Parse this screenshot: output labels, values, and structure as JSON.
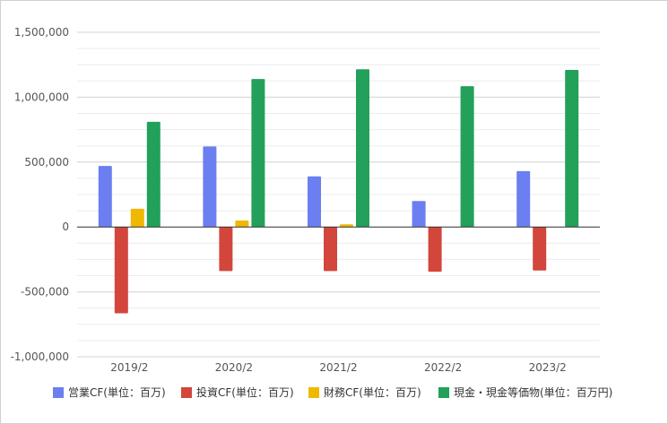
{
  "chart_data": {
    "type": "bar",
    "title": "",
    "xlabel": "",
    "ylabel": "",
    "categories": [
      "2019/2",
      "2020/2",
      "2021/2",
      "2022/2",
      "2023/2"
    ],
    "ylim": [
      -1000000,
      1500000
    ],
    "y_ticks": [
      1500000,
      1000000,
      500000,
      0,
      -500000,
      -1000000
    ],
    "y_tick_labels": [
      "1,500,000",
      "1,000,000",
      "500,000",
      "0",
      "-500,000",
      "-1,000,000"
    ],
    "grid": true,
    "legend_position": "bottom",
    "series": [
      {
        "name": "営業CF(単位：百万)",
        "color": "#6b7ff0",
        "values": [
          470000,
          620000,
          390000,
          200000,
          430000
        ]
      },
      {
        "name": "投資CF(単位：百万)",
        "color": "#d2463c",
        "values": [
          -665000,
          -340000,
          -340000,
          -345000,
          -335000
        ]
      },
      {
        "name": "財務CF(単位：百万)",
        "color": "#f0b800",
        "values": [
          140000,
          50000,
          20000,
          0,
          0
        ]
      },
      {
        "name": "現金・現金等価物(単位：百万円)",
        "color": "#23a05a",
        "values": [
          810000,
          1140000,
          1215000,
          1085000,
          1210000
        ]
      }
    ]
  }
}
